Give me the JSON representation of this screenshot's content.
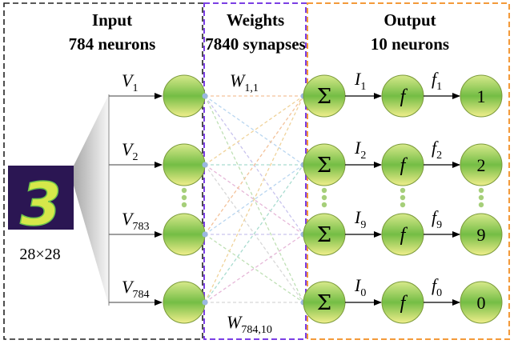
{
  "headers": {
    "input_title": "Input",
    "input_count": "784 neurons",
    "weights_title": "Weights",
    "weights_count": "7840 synapses",
    "output_title": "Output",
    "output_count": "10 neurons"
  },
  "image_label": "28×28",
  "digit_glyph": "3",
  "inputs": [
    {
      "sym": "V",
      "sub": "1"
    },
    {
      "sym": "V",
      "sub": "2"
    },
    {
      "sym": "V",
      "sub": "783"
    },
    {
      "sym": "V",
      "sub": "784"
    }
  ],
  "weights": [
    {
      "sym": "W",
      "sub": "1,1"
    },
    {
      "sym": "W",
      "sub": "784,10"
    }
  ],
  "sum_symbol": "Σ",
  "act_symbol": "f",
  "currents": [
    {
      "sym": "I",
      "sub": "1"
    },
    {
      "sym": "I",
      "sub": "2"
    },
    {
      "sym": "I",
      "sub": "9"
    },
    {
      "sym": "I",
      "sub": "0"
    }
  ],
  "activations": [
    {
      "sym": "f",
      "sub": "1"
    },
    {
      "sym": "f",
      "sub": "2"
    },
    {
      "sym": "f",
      "sub": "9"
    },
    {
      "sym": "f",
      "sub": "0"
    }
  ],
  "outputs": [
    "1",
    "2",
    "9",
    "0"
  ],
  "colors": {
    "input_box": "#222222",
    "weights_box": "#7b3fe4",
    "output_box": "#f39a3a",
    "node_top": "#c9e07a",
    "node_mid": "#7ec24a",
    "node_bottom": "#e8ea8a",
    "digit_bg": "#2b1653",
    "digit_fg": "#d6e84a"
  }
}
